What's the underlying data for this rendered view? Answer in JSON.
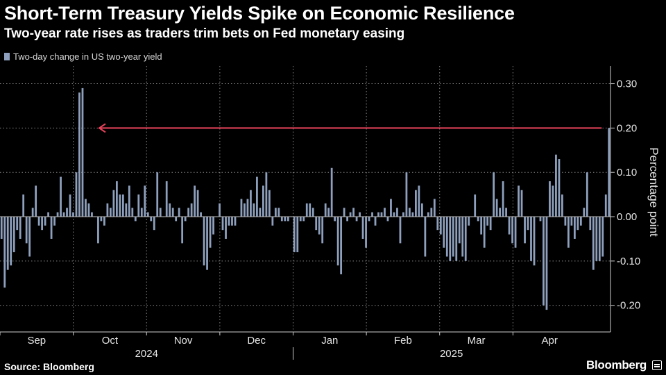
{
  "header": {
    "title": "Short-Term Treasury Yields Spike on Economic Resilience",
    "subtitle": "Two-year rate rises as traders trim bets on Fed monetary easing"
  },
  "footer": {
    "source": "Source: Bloomberg",
    "brand": "Bloomberg"
  },
  "colors": {
    "bar": "#8ea0bd",
    "arrow": "#e8435a",
    "grid": "#888888",
    "axis": "#cfcfcf"
  },
  "chart_data": {
    "type": "bar",
    "legend": [
      "Two-day change in US two-year yield"
    ],
    "ylabel": "Percentage point",
    "ylim": [
      -0.26,
      0.34
    ],
    "yticks": [
      -0.2,
      -0.1,
      0.0,
      0.1,
      0.2,
      0.3
    ],
    "ytick_labels": [
      "-0.20",
      "-0.10",
      "0.00",
      "0.10",
      "0.20",
      "0.30"
    ],
    "x_month_labels": [
      "Sep",
      "Oct",
      "Nov",
      "Dec",
      "Jan",
      "Feb",
      "Mar",
      "Apr"
    ],
    "x_year_labels": [
      "2024",
      "2025"
    ],
    "grid": "vertical dotted lines at month starts, horizontal dotted lines at y ticks",
    "annotation": "arrow pointing back from the latest bar at 0.20 to the September 2024 spike",
    "series": [
      {
        "values": [
          -0.05,
          -0.16,
          -0.12,
          -0.11,
          -0.08,
          -0.03,
          -0.05,
          0.05,
          -0.06,
          -0.09,
          0.02,
          0.07,
          -0.02,
          -0.03,
          -0.02,
          0.01,
          -0.05,
          -0.02,
          0.01,
          0.09,
          0.01,
          0.02,
          0.05,
          0.01,
          0.1,
          0.28,
          0.29,
          0.04,
          0.03,
          0.01,
          0.0,
          -0.06,
          -0.01,
          -0.02,
          0.03,
          0.02,
          0.06,
          0.08,
          0.05,
          0.05,
          0.03,
          0.07,
          0.02,
          -0.01,
          0.05,
          0.02,
          0.07,
          0.01,
          -0.01,
          -0.03,
          0.1,
          0.02,
          0.0,
          0.08,
          0.03,
          0.02,
          -0.01,
          0.02,
          -0.06,
          -0.01,
          0.02,
          0.03,
          0.07,
          0.06,
          0.01,
          -0.11,
          -0.12,
          -0.07,
          -0.04,
          0.0,
          0.03,
          -0.03,
          -0.05,
          -0.02,
          -0.02,
          -0.02,
          0.0,
          0.04,
          0.03,
          0.04,
          0.06,
          0.03,
          0.09,
          0.02,
          0.07,
          0.1,
          0.06,
          -0.02,
          0.02,
          0.02,
          -0.01,
          -0.01,
          -0.01,
          0.0,
          -0.08,
          -0.08,
          -0.01,
          -0.01,
          0.03,
          0.03,
          0.02,
          -0.03,
          -0.04,
          -0.06,
          0.03,
          0.02,
          0.11,
          -0.01,
          -0.11,
          -0.13,
          0.02,
          -0.01,
          0.01,
          0.02,
          -0.01,
          0.01,
          -0.05,
          -0.07,
          -0.01,
          0.01,
          -0.02,
          0.01,
          0.01,
          0.02,
          -0.01,
          0.04,
          0.01,
          0.02,
          -0.06,
          0.01,
          0.1,
          0.02,
          0.01,
          0.06,
          0.07,
          0.03,
          -0.09,
          0.01,
          0.02,
          0.04,
          -0.03,
          -0.04,
          -0.07,
          -0.09,
          -0.1,
          -0.09,
          -0.1,
          -0.06,
          -0.09,
          -0.1,
          -0.02,
          0.0,
          0.05,
          -0.01,
          -0.04,
          -0.07,
          -0.02,
          -0.03,
          0.1,
          0.04,
          0.02,
          0.08,
          0.02,
          -0.04,
          -0.06,
          -0.07,
          0.07,
          0.06,
          -0.06,
          -0.03,
          -0.1,
          -0.11,
          0.0,
          -0.01,
          -0.2,
          -0.21,
          0.08,
          0.07,
          0.14,
          0.13,
          0.05,
          -0.02,
          -0.07,
          -0.02,
          -0.05,
          -0.03,
          -0.02,
          0.02,
          0.1,
          -0.03,
          -0.12,
          -0.1,
          -0.1,
          -0.09,
          0.05,
          0.2
        ]
      }
    ]
  }
}
